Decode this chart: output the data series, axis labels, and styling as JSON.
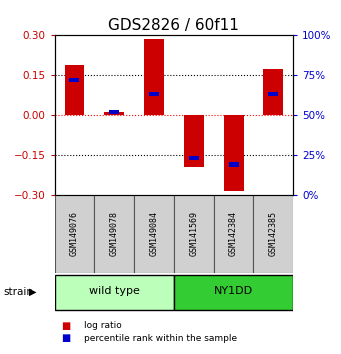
{
  "title": "GDS2826 / 60f11",
  "samples": [
    "GSM149076",
    "GSM149078",
    "GSM149084",
    "GSM141569",
    "GSM142384",
    "GSM142385"
  ],
  "log_ratios": [
    0.19,
    0.01,
    0.285,
    -0.195,
    -0.285,
    0.175
  ],
  "percentile_ranks": [
    0.72,
    0.52,
    0.63,
    0.23,
    0.19,
    0.63
  ],
  "ylim": [
    -0.3,
    0.3
  ],
  "yticks_left": [
    -0.3,
    -0.15,
    0,
    0.15,
    0.3
  ],
  "yticks_right": [
    0,
    25,
    50,
    75,
    100
  ],
  "hlines": [
    -0.15,
    0,
    0.15
  ],
  "hline_colors": [
    "black",
    "red",
    "black"
  ],
  "hline_styles": [
    "dotted",
    "dotted",
    "dotted"
  ],
  "bar_color": "#cc0000",
  "percentile_color": "#0000cc",
  "bar_width": 0.5,
  "groups": [
    {
      "label": "wild type",
      "indices": [
        0,
        1,
        2
      ],
      "color": "#bbffbb"
    },
    {
      "label": "NY1DD",
      "indices": [
        3,
        4,
        5
      ],
      "color": "#33cc33"
    }
  ],
  "group_row_label": "strain",
  "legend_log_ratio": "log ratio",
  "legend_percentile": "percentile rank within the sample",
  "title_fontsize": 11,
  "axis_label_color_left": "#cc0000",
  "axis_label_color_right": "#0000cc",
  "background_color": "#ffffff",
  "plot_bg": "#ffffff",
  "right_axis_suffix": "%",
  "sample_box_color": "#d0d0d0",
  "sample_box_edge": "#555555"
}
